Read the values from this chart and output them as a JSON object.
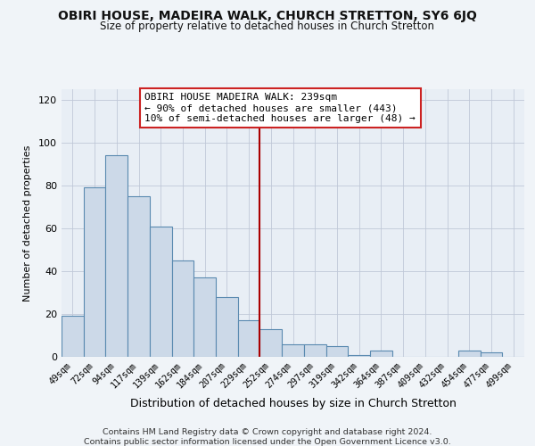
{
  "title": "OBIRI HOUSE, MADEIRA WALK, CHURCH STRETTON, SY6 6JQ",
  "subtitle": "Size of property relative to detached houses in Church Stretton",
  "xlabel": "Distribution of detached houses by size in Church Stretton",
  "ylabel": "Number of detached properties",
  "bar_labels": [
    "49sqm",
    "72sqm",
    "94sqm",
    "117sqm",
    "139sqm",
    "162sqm",
    "184sqm",
    "207sqm",
    "229sqm",
    "252sqm",
    "274sqm",
    "297sqm",
    "319sqm",
    "342sqm",
    "364sqm",
    "387sqm",
    "409sqm",
    "432sqm",
    "454sqm",
    "477sqm",
    "499sqm"
  ],
  "bar_values": [
    19,
    79,
    94,
    75,
    61,
    45,
    37,
    28,
    17,
    13,
    6,
    6,
    5,
    1,
    3,
    0,
    0,
    0,
    3,
    2,
    0
  ],
  "bar_color": "#ccd9e8",
  "bar_edge_color": "#5a8ab0",
  "vline_x": 8.5,
  "vline_color": "#aa0000",
  "annotation_text": "OBIRI HOUSE MADEIRA WALK: 239sqm\n← 90% of detached houses are smaller (443)\n10% of semi-detached houses are larger (48) →",
  "annotation_box_color": "#ffffff",
  "annotation_box_edge": "#cc2222",
  "ylim": [
    0,
    125
  ],
  "yticks": [
    0,
    20,
    40,
    60,
    80,
    100,
    120
  ],
  "footer1": "Contains HM Land Registry data © Crown copyright and database right 2024.",
  "footer2": "Contains public sector information licensed under the Open Government Licence v3.0.",
  "bg_color": "#f0f4f8",
  "plot_bg_color": "#e8eef5",
  "grid_color": "#c0c8d8"
}
